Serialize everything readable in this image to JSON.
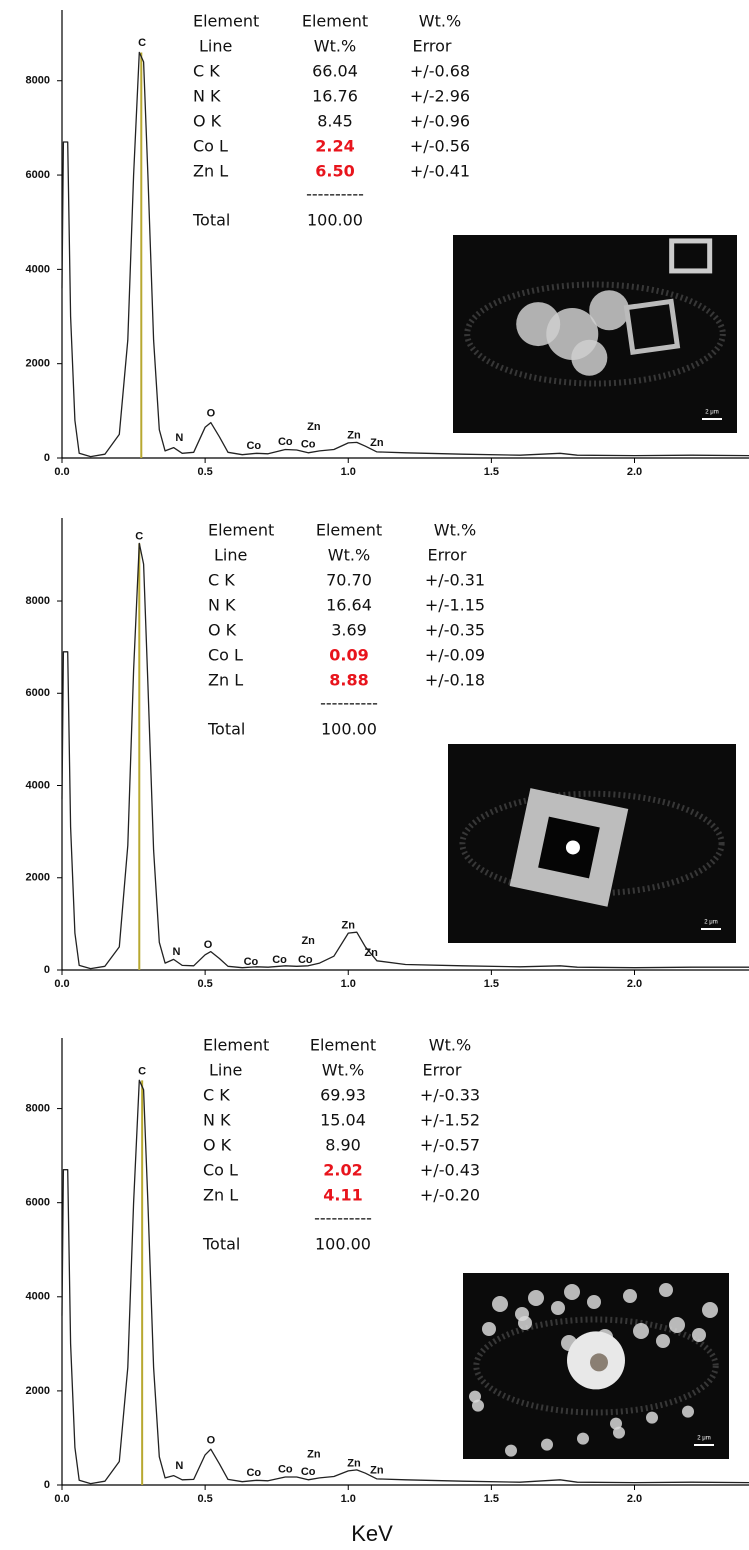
{
  "chart_data": [
    {
      "type": "line",
      "x": [
        0,
        0.005,
        0.02,
        0.03,
        0.045,
        0.06,
        0.1,
        0.15,
        0.2,
        0.23,
        0.25,
        0.27,
        0.285,
        0.3,
        0.32,
        0.34,
        0.36,
        0.39,
        0.42,
        0.46,
        0.5,
        0.52,
        0.55,
        0.58,
        0.63,
        0.68,
        0.72,
        0.78,
        0.82,
        0.86,
        0.9,
        0.95,
        1.0,
        1.03,
        1.06,
        1.1,
        1.2,
        1.4,
        1.6,
        1.74,
        1.8,
        2.0,
        2.2,
        2.4
      ],
      "values": [
        3600,
        6700,
        6700,
        3000,
        800,
        100,
        30,
        80,
        500,
        2500,
        6000,
        8600,
        8400,
        6000,
        2500,
        600,
        150,
        220,
        100,
        120,
        650,
        750,
        450,
        120,
        70,
        100,
        90,
        180,
        170,
        110,
        150,
        180,
        320,
        330,
        250,
        130,
        110,
        80,
        60,
        100,
        60,
        50,
        60,
        50
      ],
      "color": "#222222",
      "marker_x": 0.277,
      "marker_color": "#b8a830",
      "xlim": [
        0,
        2.4
      ],
      "ylim": [
        0,
        9500
      ],
      "xticks": [
        {
          "value": 0,
          "label": "0.0"
        },
        0.5,
        {
          "value": 1,
          "label": "1.0"
        },
        1.5,
        {
          "value": 2,
          "label": "2.0"
        }
      ],
      "yticks": [
        0,
        2000,
        4000,
        6000,
        8000
      ],
      "annotations": [
        {
          "text": "C",
          "x": 0.28,
          "y": 8800
        },
        {
          "text": "N",
          "x": 0.41,
          "y": 425
        },
        {
          "text": "O",
          "x": 0.52,
          "y": 940
        },
        {
          "text": "Co",
          "x": 0.67,
          "y": 255
        },
        {
          "text": "Co",
          "x": 0.78,
          "y": 340
        },
        {
          "text": "Zn",
          "x": 0.88,
          "y": 660
        },
        {
          "text": "Co",
          "x": 0.86,
          "y": 280
        },
        {
          "text": "Zn",
          "x": 1.02,
          "y": 470
        },
        {
          "text": "Zn",
          "x": 1.1,
          "y": 320
        }
      ],
      "table": {
        "header": [
          [
            "Element",
            "Element",
            "Wt.%"
          ],
          [
            "Line",
            "Wt.%",
            "Error"
          ]
        ],
        "rows": [
          [
            "C K",
            "66.04",
            "+/-0.68"
          ],
          [
            "N K",
            "16.76",
            "+/-2.96"
          ],
          [
            "O K",
            "8.45",
            "+/-0.96"
          ],
          [
            "Co L",
            "2.24",
            "+/-0.56"
          ],
          [
            "Zn L",
            "6.50",
            "+/-0.41"
          ]
        ],
        "rule": "----------",
        "total": [
          "Total",
          "100.00"
        ],
        "highlight_rows": [
          3,
          4
        ],
        "highlight_color": "#e8141c"
      },
      "inset_scale": "2 μm"
    },
    {
      "type": "line",
      "x": [
        0,
        0.005,
        0.02,
        0.03,
        0.045,
        0.06,
        0.1,
        0.15,
        0.2,
        0.23,
        0.25,
        0.27,
        0.285,
        0.3,
        0.32,
        0.34,
        0.36,
        0.39,
        0.42,
        0.46,
        0.5,
        0.52,
        0.55,
        0.58,
        0.63,
        0.68,
        0.72,
        0.78,
        0.82,
        0.86,
        0.9,
        0.95,
        1.0,
        1.03,
        1.06,
        1.1,
        1.2,
        1.4,
        1.6,
        1.74,
        1.8,
        2.0,
        2.2,
        2.4
      ],
      "values": [
        3700,
        6900,
        6900,
        3100,
        800,
        100,
        30,
        80,
        500,
        2700,
        6500,
        9250,
        8800,
        6200,
        2600,
        600,
        150,
        230,
        100,
        90,
        330,
        400,
        250,
        80,
        50,
        70,
        60,
        90,
        80,
        90,
        150,
        300,
        800,
        820,
        500,
        200,
        120,
        90,
        70,
        90,
        60,
        50,
        60,
        60
      ],
      "color": "#222222",
      "marker_x": 0.27,
      "marker_color": "#b8a830",
      "xlim": [
        0,
        2.4
      ],
      "ylim": [
        0,
        9800
      ],
      "xticks": [
        {
          "value": 0,
          "label": "0.0"
        },
        0.5,
        {
          "value": 1,
          "label": "1.0"
        },
        1.5,
        {
          "value": 2,
          "label": "2.0"
        }
      ],
      "yticks": [
        0,
        2000,
        4000,
        6000,
        8000
      ],
      "annotations": [
        {
          "text": "C",
          "x": 0.27,
          "y": 9400
        },
        {
          "text": "N",
          "x": 0.4,
          "y": 390
        },
        {
          "text": "O",
          "x": 0.51,
          "y": 540
        },
        {
          "text": "Co",
          "x": 0.66,
          "y": 175
        },
        {
          "text": "Co",
          "x": 0.76,
          "y": 220
        },
        {
          "text": "Zn",
          "x": 0.86,
          "y": 630
        },
        {
          "text": "Co",
          "x": 0.85,
          "y": 220
        },
        {
          "text": "Zn",
          "x": 1.0,
          "y": 960
        },
        {
          "text": "Zn",
          "x": 1.08,
          "y": 370
        }
      ],
      "table": {
        "header": [
          [
            "Element",
            "Element",
            "Wt.%"
          ],
          [
            "Line",
            "Wt.%",
            "Error"
          ]
        ],
        "rows": [
          [
            "C K",
            "70.70",
            "+/-0.31"
          ],
          [
            "N K",
            "16.64",
            "+/-1.15"
          ],
          [
            "O K",
            "3.69",
            "+/-0.35"
          ],
          [
            "Co L",
            "0.09",
            "+/-0.09"
          ],
          [
            "Zn L",
            "8.88",
            "+/-0.18"
          ]
        ],
        "rule": "----------",
        "total": [
          "Total",
          "100.00"
        ],
        "highlight_rows": [
          3,
          4
        ],
        "highlight_color": "#e8141c"
      },
      "inset_scale": "2 μm"
    },
    {
      "type": "line",
      "x": [
        0,
        0.005,
        0.02,
        0.03,
        0.045,
        0.06,
        0.1,
        0.15,
        0.2,
        0.23,
        0.25,
        0.27,
        0.285,
        0.3,
        0.32,
        0.34,
        0.36,
        0.39,
        0.42,
        0.46,
        0.5,
        0.52,
        0.55,
        0.58,
        0.63,
        0.68,
        0.72,
        0.78,
        0.82,
        0.86,
        0.9,
        0.95,
        1.0,
        1.03,
        1.06,
        1.1,
        1.2,
        1.4,
        1.6,
        1.74,
        1.8,
        2.0,
        2.2,
        2.4
      ],
      "values": [
        3600,
        6700,
        6700,
        3000,
        800,
        100,
        30,
        80,
        500,
        2500,
        6000,
        8600,
        8400,
        6000,
        2500,
        600,
        150,
        200,
        110,
        120,
        640,
        760,
        450,
        120,
        70,
        100,
        90,
        170,
        170,
        110,
        150,
        180,
        300,
        320,
        250,
        130,
        110,
        80,
        60,
        110,
        60,
        50,
        60,
        50
      ],
      "color": "#222222",
      "marker_x": 0.28,
      "marker_color": "#b8a830",
      "xlim": [
        0,
        2.4
      ],
      "ylim": [
        0,
        9500
      ],
      "xticks": [
        {
          "value": 0,
          "label": "0.0"
        },
        0.5,
        {
          "value": 1,
          "label": "1.0"
        },
        1.5,
        {
          "value": 2,
          "label": "2.0"
        }
      ],
      "yticks": [
        0,
        2000,
        4000,
        6000,
        8000
      ],
      "xlabel": "KeV",
      "annotations": [
        {
          "text": "C",
          "x": 0.28,
          "y": 8790
        },
        {
          "text": "N",
          "x": 0.41,
          "y": 400
        },
        {
          "text": "O",
          "x": 0.52,
          "y": 940
        },
        {
          "text": "Co",
          "x": 0.67,
          "y": 250
        },
        {
          "text": "Co",
          "x": 0.78,
          "y": 330
        },
        {
          "text": "Zn",
          "x": 0.88,
          "y": 650
        },
        {
          "text": "Co",
          "x": 0.86,
          "y": 270
        },
        {
          "text": "Zn",
          "x": 1.02,
          "y": 460
        },
        {
          "text": "Zn",
          "x": 1.1,
          "y": 310
        }
      ],
      "table": {
        "header": [
          [
            "Element",
            "Element",
            "Wt.%"
          ],
          [
            "Line",
            "Wt.%",
            "Error"
          ]
        ],
        "rows": [
          [
            "C K",
            "69.93",
            "+/-0.33"
          ],
          [
            "N K",
            "15.04",
            "+/-1.52"
          ],
          [
            "O K",
            "8.90",
            "+/-0.57"
          ],
          [
            "Co L",
            "2.02",
            "+/-0.43"
          ],
          [
            "Zn L",
            "4.11",
            "+/-0.20"
          ]
        ],
        "rule": "----------",
        "total": [
          "Total",
          "100.00"
        ],
        "highlight_rows": [
          3,
          4
        ],
        "highlight_color": "#e8141c"
      },
      "inset_scale": "2 μm"
    }
  ]
}
